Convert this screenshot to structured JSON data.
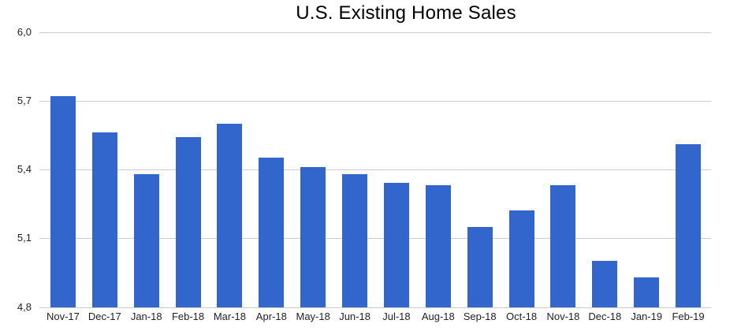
{
  "chart_data": {
    "type": "bar",
    "title": "U.S. Existing Home Sales",
    "categories": [
      "Nov-17",
      "Dec-17",
      "Jan-18",
      "Feb-18",
      "Mar-18",
      "Apr-18",
      "May-18",
      "Jun-18",
      "Jul-18",
      "Aug-18",
      "Sep-18",
      "Oct-18",
      "Nov-18",
      "Dec-18",
      "Jan-19",
      "Feb-19"
    ],
    "values": [
      5.72,
      5.56,
      5.38,
      5.54,
      5.6,
      5.45,
      5.41,
      5.38,
      5.34,
      5.33,
      5.15,
      5.22,
      5.33,
      5.0,
      4.93,
      5.51
    ],
    "xlabel": "",
    "ylabel": "",
    "ylim": [
      4.8,
      6.0
    ],
    "yticks": [
      4.8,
      5.1,
      5.4,
      5.7,
      6.0
    ],
    "ytick_labels": [
      "4,8",
      "5,1",
      "5,4",
      "5,7",
      "6,0"
    ],
    "grid": "horizontal",
    "legend_position": "none",
    "colors": {
      "bar": "#3366CC",
      "gridline": "#CCCCCC",
      "axis_text": "#222222",
      "title_text": "#000000",
      "background": "#FFFFFF"
    }
  }
}
